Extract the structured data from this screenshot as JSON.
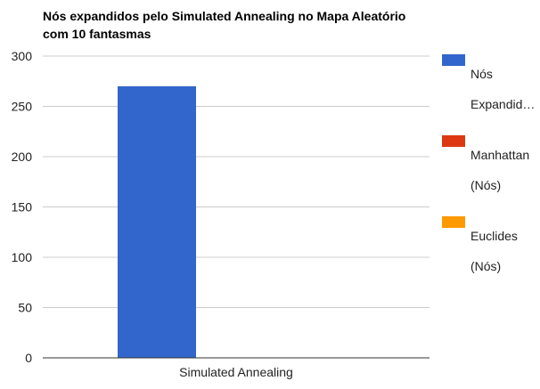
{
  "chart_data": {
    "type": "bar",
    "title_lines": [
      "Nós expandidos pelo Simulated Annealing no Mapa Aleatório",
      "com 10 fantasmas"
    ],
    "categories": [
      "Simulated Annealing"
    ],
    "series": [
      {
        "name": "Nós Expandid…",
        "color": "#3366cc",
        "values": [
          270
        ]
      },
      {
        "name": "Manhattan (Nós)",
        "color": "#dc3912",
        "values": [
          0
        ]
      },
      {
        "name": "Euclides (Nós)",
        "color": "#ff9900",
        "values": [
          0
        ]
      }
    ],
    "legend_lines": [
      [
        "Nós",
        "Expandid…"
      ],
      [
        "Manhattan",
        "(Nós)"
      ],
      [
        "Euclides",
        "(Nós)"
      ]
    ],
    "y_ticks": [
      0,
      50,
      100,
      150,
      200,
      250,
      300
    ],
    "ylim": [
      0,
      300
    ],
    "xlabel": "",
    "ylabel": "",
    "grid": true,
    "legend_position": "right"
  }
}
